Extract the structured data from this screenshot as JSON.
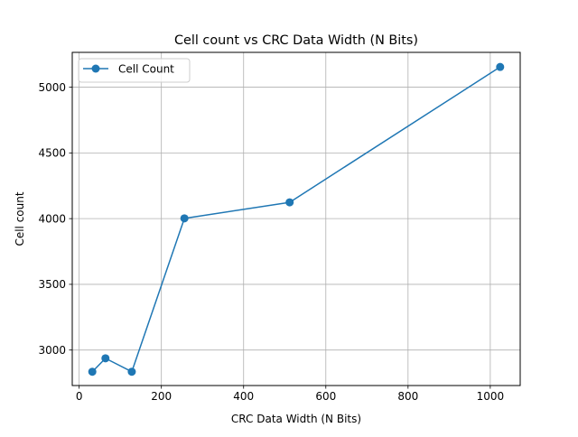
{
  "chart_data": {
    "type": "line",
    "title": "Cell count vs CRC Data Width (N Bits)",
    "xlabel": "CRC Data Width (N Bits)",
    "ylabel": "Cell count",
    "xlim": [
      -16.8,
      1072.8
    ],
    "ylim": [
      2730,
      5265
    ],
    "xticks": [
      0,
      200,
      400,
      600,
      800,
      1000
    ],
    "yticks": [
      3000,
      3500,
      4000,
      4500,
      5000
    ],
    "grid": true,
    "legend_position": "top-left",
    "series": [
      {
        "name": "Cell Count",
        "color": "#1f77b4",
        "marker": "circle",
        "x": [
          32,
          64,
          128,
          256,
          512,
          1024
        ],
        "y": [
          2835,
          2937,
          2835,
          4002,
          4124,
          5154
        ]
      }
    ]
  }
}
